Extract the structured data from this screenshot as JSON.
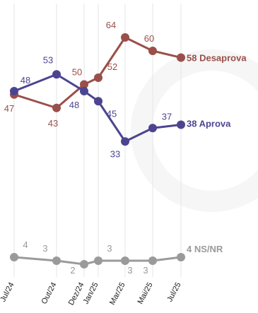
{
  "chart_data": {
    "type": "line",
    "x": [
      "Jul/24",
      "Out/24",
      "Dez/24",
      "Jan/25",
      "Mar/25",
      "Mai/25",
      "Jul/25"
    ],
    "series": [
      {
        "name": "Desaprova",
        "color": "#9a4f4a",
        "values": [
          47,
          43,
          50,
          52,
          64,
          60,
          58
        ],
        "end_label": "58 Desaprova"
      },
      {
        "name": "Aprova",
        "color": "#4b4590",
        "values": [
          48,
          53,
          48,
          45,
          33,
          37,
          38
        ],
        "end_label": "38 Aprova"
      },
      {
        "name": "NS/NR",
        "color": "#9a9a9a",
        "values": [
          4,
          3,
          2,
          3,
          3,
          3,
          4
        ],
        "end_label": "4 NS/NR"
      }
    ],
    "grid": "vertical",
    "legend": "line-end labels"
  }
}
